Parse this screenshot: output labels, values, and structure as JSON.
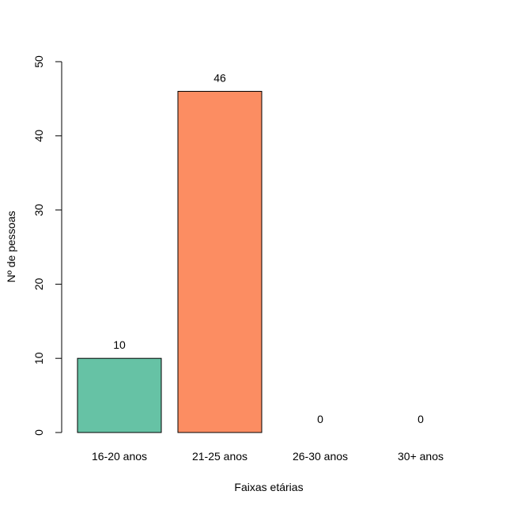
{
  "chart_data": {
    "type": "bar",
    "categories": [
      "16-20 anos",
      "21-25 anos",
      "26-30 anos",
      "30+ anos"
    ],
    "values": [
      10,
      46,
      0,
      0
    ],
    "data_labels": [
      "10",
      "46",
      "0",
      "0"
    ],
    "colors": [
      "#66C2A5",
      "#FC8D62",
      "#8DA0CB",
      "#E78AC3"
    ],
    "title": "",
    "xlabel": "Faixas etárias",
    "ylabel": "Nº de pessoas",
    "ylim": [
      0,
      50
    ],
    "yticks": [
      0,
      10,
      20,
      30,
      40,
      50
    ],
    "ytick_labels": [
      "0",
      "10",
      "20",
      "30",
      "40",
      "50"
    ],
    "grid": false,
    "legend": "none"
  }
}
